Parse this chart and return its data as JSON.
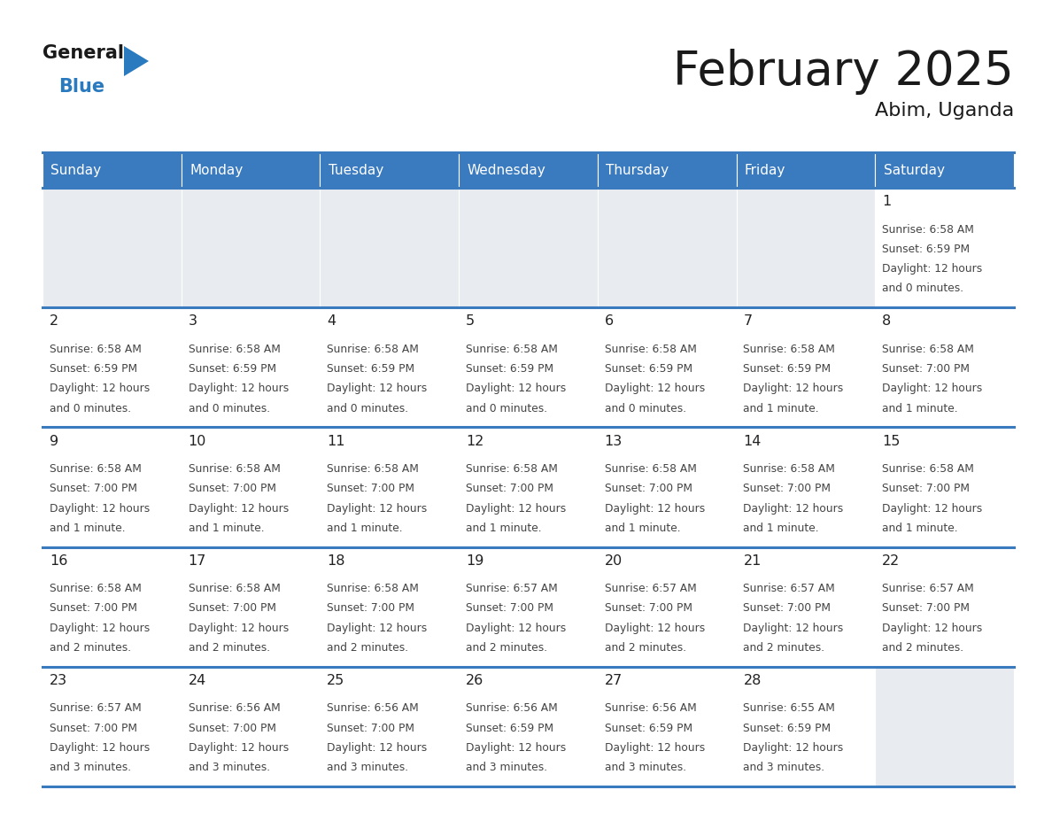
{
  "title": "February 2025",
  "subtitle": "Abim, Uganda",
  "header_bg": "#3a7abf",
  "header_text_color": "#ffffff",
  "day_names": [
    "Sunday",
    "Monday",
    "Tuesday",
    "Wednesday",
    "Thursday",
    "Friday",
    "Saturday"
  ],
  "cell_bg_white": "#ffffff",
  "cell_bg_light": "#f0f4f8",
  "cell_bg_empty": "#e8ecf0",
  "separator_color": "#3a7abf",
  "day_number_color": "#222222",
  "text_color": "#444444",
  "calendar": [
    [
      {
        "day": 0,
        "sunrise": "",
        "sunset": "",
        "daylight": ""
      },
      {
        "day": 0,
        "sunrise": "",
        "sunset": "",
        "daylight": ""
      },
      {
        "day": 0,
        "sunrise": "",
        "sunset": "",
        "daylight": ""
      },
      {
        "day": 0,
        "sunrise": "",
        "sunset": "",
        "daylight": ""
      },
      {
        "day": 0,
        "sunrise": "",
        "sunset": "",
        "daylight": ""
      },
      {
        "day": 0,
        "sunrise": "",
        "sunset": "",
        "daylight": ""
      },
      {
        "day": 1,
        "sunrise": "6:58 AM",
        "sunset": "6:59 PM",
        "daylight": "12 hours\nand 0 minutes."
      }
    ],
    [
      {
        "day": 2,
        "sunrise": "6:58 AM",
        "sunset": "6:59 PM",
        "daylight": "12 hours\nand 0 minutes."
      },
      {
        "day": 3,
        "sunrise": "6:58 AM",
        "sunset": "6:59 PM",
        "daylight": "12 hours\nand 0 minutes."
      },
      {
        "day": 4,
        "sunrise": "6:58 AM",
        "sunset": "6:59 PM",
        "daylight": "12 hours\nand 0 minutes."
      },
      {
        "day": 5,
        "sunrise": "6:58 AM",
        "sunset": "6:59 PM",
        "daylight": "12 hours\nand 0 minutes."
      },
      {
        "day": 6,
        "sunrise": "6:58 AM",
        "sunset": "6:59 PM",
        "daylight": "12 hours\nand 0 minutes."
      },
      {
        "day": 7,
        "sunrise": "6:58 AM",
        "sunset": "6:59 PM",
        "daylight": "12 hours\nand 1 minute."
      },
      {
        "day": 8,
        "sunrise": "6:58 AM",
        "sunset": "7:00 PM",
        "daylight": "12 hours\nand 1 minute."
      }
    ],
    [
      {
        "day": 9,
        "sunrise": "6:58 AM",
        "sunset": "7:00 PM",
        "daylight": "12 hours\nand 1 minute."
      },
      {
        "day": 10,
        "sunrise": "6:58 AM",
        "sunset": "7:00 PM",
        "daylight": "12 hours\nand 1 minute."
      },
      {
        "day": 11,
        "sunrise": "6:58 AM",
        "sunset": "7:00 PM",
        "daylight": "12 hours\nand 1 minute."
      },
      {
        "day": 12,
        "sunrise": "6:58 AM",
        "sunset": "7:00 PM",
        "daylight": "12 hours\nand 1 minute."
      },
      {
        "day": 13,
        "sunrise": "6:58 AM",
        "sunset": "7:00 PM",
        "daylight": "12 hours\nand 1 minute."
      },
      {
        "day": 14,
        "sunrise": "6:58 AM",
        "sunset": "7:00 PM",
        "daylight": "12 hours\nand 1 minute."
      },
      {
        "day": 15,
        "sunrise": "6:58 AM",
        "sunset": "7:00 PM",
        "daylight": "12 hours\nand 1 minute."
      }
    ],
    [
      {
        "day": 16,
        "sunrise": "6:58 AM",
        "sunset": "7:00 PM",
        "daylight": "12 hours\nand 2 minutes."
      },
      {
        "day": 17,
        "sunrise": "6:58 AM",
        "sunset": "7:00 PM",
        "daylight": "12 hours\nand 2 minutes."
      },
      {
        "day": 18,
        "sunrise": "6:58 AM",
        "sunset": "7:00 PM",
        "daylight": "12 hours\nand 2 minutes."
      },
      {
        "day": 19,
        "sunrise": "6:57 AM",
        "sunset": "7:00 PM",
        "daylight": "12 hours\nand 2 minutes."
      },
      {
        "day": 20,
        "sunrise": "6:57 AM",
        "sunset": "7:00 PM",
        "daylight": "12 hours\nand 2 minutes."
      },
      {
        "day": 21,
        "sunrise": "6:57 AM",
        "sunset": "7:00 PM",
        "daylight": "12 hours\nand 2 minutes."
      },
      {
        "day": 22,
        "sunrise": "6:57 AM",
        "sunset": "7:00 PM",
        "daylight": "12 hours\nand 2 minutes."
      }
    ],
    [
      {
        "day": 23,
        "sunrise": "6:57 AM",
        "sunset": "7:00 PM",
        "daylight": "12 hours\nand 3 minutes."
      },
      {
        "day": 24,
        "sunrise": "6:56 AM",
        "sunset": "7:00 PM",
        "daylight": "12 hours\nand 3 minutes."
      },
      {
        "day": 25,
        "sunrise": "6:56 AM",
        "sunset": "7:00 PM",
        "daylight": "12 hours\nand 3 minutes."
      },
      {
        "day": 26,
        "sunrise": "6:56 AM",
        "sunset": "6:59 PM",
        "daylight": "12 hours\nand 3 minutes."
      },
      {
        "day": 27,
        "sunrise": "6:56 AM",
        "sunset": "6:59 PM",
        "daylight": "12 hours\nand 3 minutes."
      },
      {
        "day": 28,
        "sunrise": "6:55 AM",
        "sunset": "6:59 PM",
        "daylight": "12 hours\nand 3 minutes."
      },
      {
        "day": 0,
        "sunrise": "",
        "sunset": "",
        "daylight": ""
      }
    ]
  ]
}
